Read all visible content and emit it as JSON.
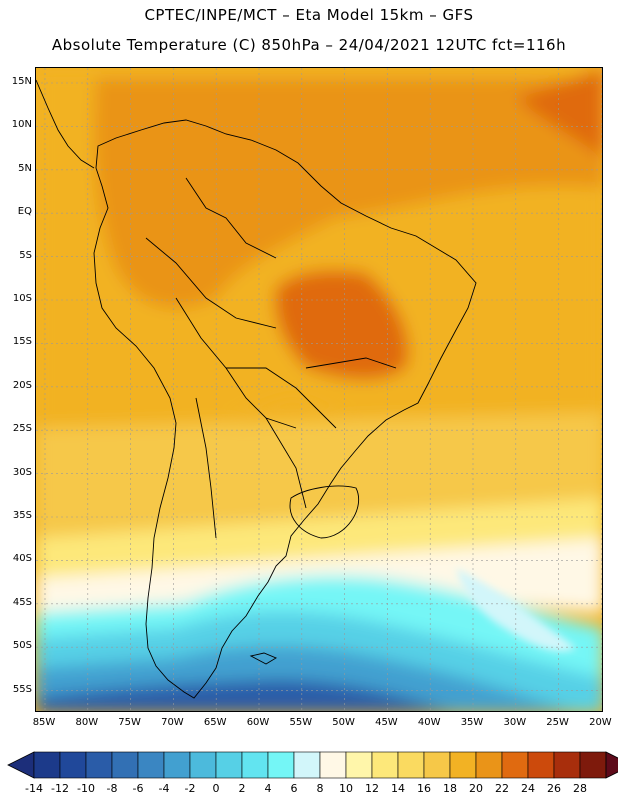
{
  "header": {
    "title_line1": "CPTEC/INPE/MCT –  Eta Model 15km – GFS",
    "title_line2": "Absolute Temperature (C) 850hPa – 24/04/2021 12UTC fct=116h"
  },
  "map": {
    "lat_labels": [
      "15N",
      "10N",
      "5N",
      "EQ",
      "5S",
      "10S",
      "15S",
      "20S",
      "25S",
      "30S",
      "35S",
      "40S",
      "45S",
      "50S",
      "55S"
    ],
    "lon_labels": [
      "85W",
      "80W",
      "75W",
      "70W",
      "65W",
      "60W",
      "55W",
      "50W",
      "45W",
      "40W",
      "35W",
      "30W",
      "25W",
      "20W"
    ],
    "colors": {
      "c_m14": "#1c3a8a",
      "c_m12": "#20489a",
      "c_m10": "#2a5ca8",
      "c_m8": "#3270b4",
      "c_m6": "#3a86c2",
      "c_m4": "#42a0d0",
      "c_m2": "#4cbadc",
      "c_0": "#56d0e6",
      "c_2": "#62e4f0",
      "c_4": "#74f6f6",
      "c_6": "#d2f6fa",
      "c_8": "#fff8e6",
      "c_10": "#fff6aa",
      "c_12": "#fde87a",
      "c_14": "#fada60",
      "c_16": "#f6c848",
      "c_18": "#f2b224",
      "c_20": "#ea9418",
      "c_22": "#e06a10",
      "c_24": "#cc4a0c",
      "c_26": "#a82e0c",
      "c_28": "#7e1a0c",
      "land_line": "#000000",
      "grid": "#999999"
    }
  },
  "colorbar": {
    "labels": [
      "-14",
      "-12",
      "-10",
      "-8",
      "-6",
      "-4",
      "-2",
      "0",
      "2",
      "4",
      "6",
      "8",
      "10",
      "12",
      "14",
      "16",
      "18",
      "20",
      "22",
      "24",
      "26",
      "28"
    ],
    "colors": [
      "#1c3a8a",
      "#20489a",
      "#2a5ca8",
      "#3270b4",
      "#3a86c2",
      "#42a0d0",
      "#4cbadc",
      "#56d0e6",
      "#62e4f0",
      "#74f6f6",
      "#d2f6fa",
      "#fff8e6",
      "#fff6aa",
      "#fde87a",
      "#fada60",
      "#f6c848",
      "#f2b224",
      "#ea9418",
      "#e06a10",
      "#cc4a0c",
      "#a82e0c",
      "#7e1a0c"
    ],
    "under_color": "#1c2e7a",
    "over_color": "#5e0a1a"
  }
}
